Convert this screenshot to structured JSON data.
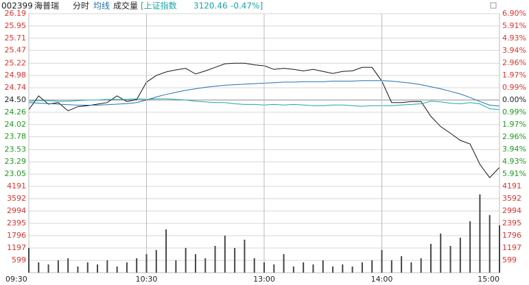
{
  "header": {
    "code": "002399",
    "name": "海普瑞",
    "mode": "分时",
    "avg_label": "均线",
    "volume_label": "成交量",
    "index_name": "[上证指数",
    "index_value": "3120.46",
    "index_change": "-0.47%]"
  },
  "chart_data": [
    {
      "type": "line",
      "x": [
        "09:30",
        "09:35",
        "09:40",
        "09:45",
        "09:50",
        "09:55",
        "10:00",
        "10:05",
        "10:10",
        "10:15",
        "10:20",
        "10:25",
        "10:30",
        "10:35",
        "10:40",
        "10:45",
        "10:50",
        "10:55",
        "11:00",
        "11:05",
        "11:10",
        "11:15",
        "11:20",
        "11:25",
        "13:00",
        "13:05",
        "13:10",
        "13:15",
        "13:20",
        "13:25",
        "13:30",
        "13:35",
        "13:40",
        "13:45",
        "13:50",
        "13:55",
        "14:00",
        "14:05",
        "14:10",
        "14:15",
        "14:20",
        "14:25",
        "14:30",
        "14:35",
        "14:40",
        "14:45",
        "14:50",
        "14:55",
        "15:00"
      ],
      "ylim": [
        22.81,
        26.19
      ],
      "y2lim": [
        -6.9,
        6.9
      ],
      "up_color": "#e0302d",
      "down_color": "#1a9a1a",
      "flat_color": "#222222",
      "yticks": [
        {
          "value": 26.19,
          "label": "26.19"
        },
        {
          "value": 25.95,
          "label": "25.95"
        },
        {
          "value": 25.71,
          "label": "25.71"
        },
        {
          "value": 25.47,
          "label": "25.47"
        },
        {
          "value": 25.22,
          "label": "25.22"
        },
        {
          "value": 24.98,
          "label": "24.98"
        },
        {
          "value": 24.74,
          "label": "24.74"
        },
        {
          "value": 24.5,
          "label": "24.50"
        },
        {
          "value": 24.26,
          "label": "24.26"
        },
        {
          "value": 24.02,
          "label": "24.02"
        },
        {
          "value": 23.78,
          "label": "23.78"
        },
        {
          "value": 23.53,
          "label": "23.53"
        },
        {
          "value": 23.29,
          "label": "23.29"
        },
        {
          "value": 23.05,
          "label": "23.05"
        }
      ],
      "y2ticks": [
        {
          "value": 6.9,
          "label": "6.90%"
        },
        {
          "value": 5.91,
          "label": "5.91%"
        },
        {
          "value": 4.93,
          "label": "4.93%"
        },
        {
          "value": 3.94,
          "label": "3.94%"
        },
        {
          "value": 2.96,
          "label": "2.96%"
        },
        {
          "value": 1.97,
          "label": "1.97%"
        },
        {
          "value": 0.99,
          "label": "0.99%"
        },
        {
          "value": 0,
          "label": "0.00%"
        },
        {
          "value": -0.99,
          "label": "0.99%"
        },
        {
          "value": -1.97,
          "label": "1.97%"
        },
        {
          "value": -2.96,
          "label": "2.96%"
        },
        {
          "value": -3.94,
          "label": "3.94%"
        },
        {
          "value": -4.93,
          "label": "4.93%"
        },
        {
          "value": -5.91,
          "label": "5.91%"
        }
      ],
      "series": [
        {
          "color": "#111111",
          "values": [
            24.31,
            24.58,
            24.42,
            24.45,
            24.29,
            24.37,
            24.39,
            24.42,
            24.45,
            24.58,
            24.47,
            24.51,
            24.85,
            24.98,
            25.05,
            25.09,
            25.12,
            25.01,
            25.07,
            25.14,
            25.21,
            25.22,
            25.22,
            25.19,
            25.17,
            25.1,
            25.12,
            25.1,
            25.07,
            25.1,
            25.06,
            25.02,
            25.06,
            25.07,
            25.14,
            25.14,
            24.87,
            24.45,
            24.45,
            24.47,
            24.47,
            24.18,
            23.98,
            23.85,
            23.71,
            23.64,
            23.24,
            22.98,
            23.18
          ]
        },
        {
          "color": "#1f6fb0",
          "values": [
            24.45,
            24.44,
            24.43,
            24.42,
            24.41,
            24.4,
            24.4,
            24.4,
            24.41,
            24.42,
            24.43,
            24.45,
            24.5,
            24.56,
            24.61,
            24.65,
            24.69,
            24.72,
            24.75,
            24.77,
            24.79,
            24.8,
            24.81,
            24.82,
            24.83,
            24.84,
            24.85,
            24.85,
            24.86,
            24.86,
            24.86,
            24.87,
            24.87,
            24.87,
            24.88,
            24.88,
            24.88,
            24.87,
            24.85,
            24.83,
            24.8,
            24.76,
            24.72,
            24.67,
            24.62,
            24.55,
            24.47,
            24.4,
            24.38
          ]
        },
        {
          "color": "#1aa5a5",
          "axis": "y2",
          "values": [
            -0.1,
            -0.05,
            -0.05,
            -0.1,
            -0.1,
            -0.05,
            0,
            0,
            0.05,
            0.05,
            0.05,
            0.1,
            0.05,
            0.1,
            0.1,
            0.05,
            0,
            -0.1,
            -0.15,
            -0.2,
            -0.2,
            -0.3,
            -0.35,
            -0.35,
            -0.4,
            -0.35,
            -0.4,
            -0.35,
            -0.4,
            -0.45,
            -0.45,
            -0.4,
            -0.4,
            -0.45,
            -0.5,
            -0.45,
            -0.45,
            -0.45,
            -0.4,
            -0.35,
            -0.3,
            -0.1,
            -0.15,
            -0.25,
            -0.3,
            -0.2,
            -0.3,
            -0.7,
            -0.76
          ]
        }
      ]
    },
    {
      "type": "bar",
      "color": "#444444",
      "label_color": "#e0302d",
      "ylim": [
        0,
        4191
      ],
      "yticks": [
        4191,
        3592,
        2994,
        2395,
        1796,
        1197,
        599
      ],
      "x": [
        "09:30",
        "09:35",
        "09:40",
        "09:45",
        "09:50",
        "09:55",
        "10:00",
        "10:05",
        "10:10",
        "10:15",
        "10:20",
        "10:25",
        "10:30",
        "10:35",
        "10:40",
        "10:45",
        "10:50",
        "10:55",
        "11:00",
        "11:05",
        "11:10",
        "11:15",
        "11:20",
        "11:25",
        "13:00",
        "13:05",
        "13:10",
        "13:15",
        "13:20",
        "13:25",
        "13:30",
        "13:35",
        "13:40",
        "13:45",
        "13:50",
        "13:55",
        "14:00",
        "14:05",
        "14:10",
        "14:15",
        "14:20",
        "14:25",
        "14:30",
        "14:35",
        "14:40",
        "14:45",
        "14:50",
        "14:55",
        "15:00"
      ],
      "xticks": [
        "09:30",
        "10:30",
        "13:00",
        "14:00",
        "15:00"
      ],
      "values": [
        1200,
        500,
        400,
        600,
        700,
        300,
        500,
        400,
        600,
        300,
        500,
        700,
        900,
        1100,
        2100,
        600,
        1200,
        900,
        700,
        1300,
        1800,
        1200,
        1600,
        700,
        500,
        400,
        900,
        300,
        500,
        400,
        600,
        300,
        400,
        300,
        500,
        600,
        1100,
        600,
        800,
        500,
        700,
        1400,
        1900,
        1300,
        1700,
        2500,
        3800,
        2800,
        2300
      ]
    }
  ]
}
